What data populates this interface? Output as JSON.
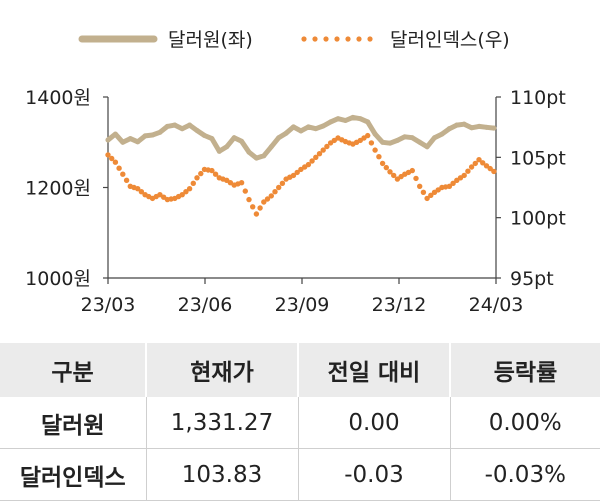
{
  "chart_data": {
    "type": "line",
    "legend_position": "top",
    "grid": false,
    "legend": [
      {
        "label": "달러원(좌)",
        "color": "#c2b08e",
        "style": "solid"
      },
      {
        "label": "달러인덱스(우)",
        "color": "#ee8a37",
        "style": "dotted"
      }
    ],
    "x_tick_labels": [
      "23/03",
      "23/06",
      "23/09",
      "23/12",
      "24/03"
    ],
    "x_range": [
      "2023-03-01",
      "2024-03-01"
    ],
    "left_axis": {
      "ylim": [
        1000,
        1400
      ],
      "ticks": [
        1000,
        1200,
        1400
      ],
      "tick_labels": [
        "1000원",
        "1200원",
        "1400원"
      ]
    },
    "right_axis": {
      "ylim": [
        95,
        110
      ],
      "ticks": [
        95,
        100,
        105,
        110
      ],
      "tick_labels": [
        "95pt",
        "100pt",
        "105pt",
        "110pt"
      ]
    },
    "series": [
      {
        "name": "달러원(좌)",
        "axis": "left",
        "color": "#c2b08e",
        "points": [
          [
            "2023-03-01",
            1305
          ],
          [
            "2023-03-08",
            1318
          ],
          [
            "2023-03-15",
            1300
          ],
          [
            "2023-03-22",
            1308
          ],
          [
            "2023-03-29",
            1301
          ],
          [
            "2023-04-05",
            1314
          ],
          [
            "2023-04-12",
            1316
          ],
          [
            "2023-04-19",
            1322
          ],
          [
            "2023-04-26",
            1335
          ],
          [
            "2023-05-03",
            1338
          ],
          [
            "2023-05-10",
            1330
          ],
          [
            "2023-05-17",
            1338
          ],
          [
            "2023-05-24",
            1326
          ],
          [
            "2023-05-31",
            1315
          ],
          [
            "2023-06-07",
            1308
          ],
          [
            "2023-06-14",
            1280
          ],
          [
            "2023-06-21",
            1290
          ],
          [
            "2023-06-28",
            1310
          ],
          [
            "2023-07-05",
            1302
          ],
          [
            "2023-07-12",
            1278
          ],
          [
            "2023-07-19",
            1265
          ],
          [
            "2023-07-26",
            1270
          ],
          [
            "2023-08-02",
            1290
          ],
          [
            "2023-08-09",
            1310
          ],
          [
            "2023-08-16",
            1320
          ],
          [
            "2023-08-23",
            1334
          ],
          [
            "2023-08-30",
            1325
          ],
          [
            "2023-09-06",
            1334
          ],
          [
            "2023-09-13",
            1330
          ],
          [
            "2023-09-20",
            1336
          ],
          [
            "2023-09-27",
            1345
          ],
          [
            "2023-10-04",
            1352
          ],
          [
            "2023-10-11",
            1348
          ],
          [
            "2023-10-18",
            1355
          ],
          [
            "2023-10-25",
            1352
          ],
          [
            "2023-11-01",
            1345
          ],
          [
            "2023-11-08",
            1318
          ],
          [
            "2023-11-15",
            1300
          ],
          [
            "2023-11-22",
            1298
          ],
          [
            "2023-11-29",
            1304
          ],
          [
            "2023-12-06",
            1312
          ],
          [
            "2023-12-13",
            1310
          ],
          [
            "2023-12-20",
            1300
          ],
          [
            "2023-12-27",
            1290
          ],
          [
            "2024-01-03",
            1310
          ],
          [
            "2024-01-10",
            1318
          ],
          [
            "2024-01-17",
            1330
          ],
          [
            "2024-01-24",
            1338
          ],
          [
            "2024-01-31",
            1340
          ],
          [
            "2024-02-07",
            1332
          ],
          [
            "2024-02-14",
            1335
          ],
          [
            "2024-02-21",
            1333
          ],
          [
            "2024-02-28",
            1331.27
          ]
        ]
      },
      {
        "name": "달러인덱스(우)",
        "axis": "right",
        "color": "#ee8a37",
        "points": [
          [
            "2023-03-01",
            105.2
          ],
          [
            "2023-03-08",
            104.6
          ],
          [
            "2023-03-15",
            103.6
          ],
          [
            "2023-03-22",
            102.6
          ],
          [
            "2023-03-29",
            102.4
          ],
          [
            "2023-04-05",
            101.9
          ],
          [
            "2023-04-12",
            101.6
          ],
          [
            "2023-04-19",
            101.9
          ],
          [
            "2023-04-26",
            101.5
          ],
          [
            "2023-05-03",
            101.6
          ],
          [
            "2023-05-10",
            101.9
          ],
          [
            "2023-05-17",
            102.4
          ],
          [
            "2023-05-24",
            103.3
          ],
          [
            "2023-05-31",
            104.0
          ],
          [
            "2023-06-07",
            103.9
          ],
          [
            "2023-06-14",
            103.3
          ],
          [
            "2023-06-21",
            103.1
          ],
          [
            "2023-06-28",
            102.7
          ],
          [
            "2023-07-05",
            102.9
          ],
          [
            "2023-07-12",
            101.5
          ],
          [
            "2023-07-19",
            100.3
          ],
          [
            "2023-07-26",
            101.3
          ],
          [
            "2023-08-02",
            101.8
          ],
          [
            "2023-08-09",
            102.5
          ],
          [
            "2023-08-16",
            103.2
          ],
          [
            "2023-08-23",
            103.5
          ],
          [
            "2023-08-30",
            104.0
          ],
          [
            "2023-09-06",
            104.4
          ],
          [
            "2023-09-13",
            105.0
          ],
          [
            "2023-09-20",
            105.6
          ],
          [
            "2023-09-27",
            106.2
          ],
          [
            "2023-10-04",
            106.6
          ],
          [
            "2023-10-11",
            106.3
          ],
          [
            "2023-10-18",
            106.1
          ],
          [
            "2023-10-25",
            106.4
          ],
          [
            "2023-11-01",
            106.8
          ],
          [
            "2023-11-08",
            105.6
          ],
          [
            "2023-11-15",
            104.5
          ],
          [
            "2023-11-22",
            103.8
          ],
          [
            "2023-11-29",
            103.2
          ],
          [
            "2023-12-06",
            103.6
          ],
          [
            "2023-12-13",
            103.9
          ],
          [
            "2023-12-20",
            102.6
          ],
          [
            "2023-12-27",
            101.6
          ],
          [
            "2024-01-03",
            102.1
          ],
          [
            "2024-01-10",
            102.5
          ],
          [
            "2024-01-17",
            102.6
          ],
          [
            "2024-01-24",
            103.1
          ],
          [
            "2024-01-31",
            103.5
          ],
          [
            "2024-02-07",
            104.2
          ],
          [
            "2024-02-14",
            104.8
          ],
          [
            "2024-02-21",
            104.3
          ],
          [
            "2024-02-28",
            103.83
          ]
        ]
      }
    ]
  },
  "table": {
    "headers": [
      "구분",
      "현재가",
      "전일 대비",
      "등락률"
    ],
    "rows": [
      [
        "달러원",
        "1,331.27",
        "0.00",
        "0.00%"
      ],
      [
        "달러인덱스",
        "103.83",
        "-0.03",
        "-0.03%"
      ]
    ]
  }
}
